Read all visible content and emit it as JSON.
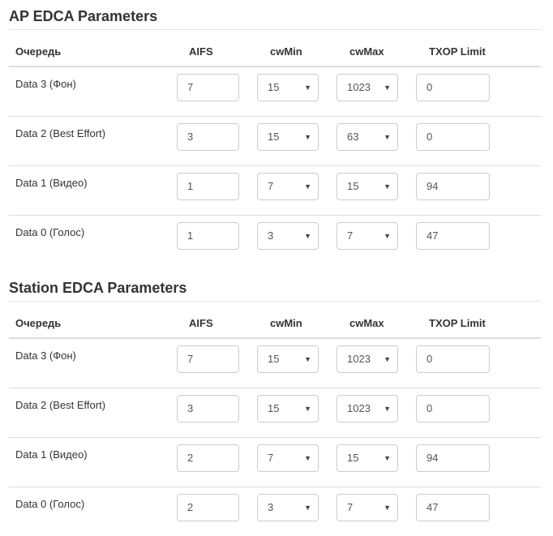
{
  "columns": {
    "queue": "Очередь",
    "aifs": "AIFS",
    "cwmin": "cwMin",
    "cwmax": "cwMax",
    "txop": "TXOP Limit"
  },
  "sections": [
    {
      "title": "AP EDCA Parameters",
      "rows": [
        {
          "label": "Data 3 (Фон)",
          "aifs": "7",
          "cwmin": "15",
          "cwmax": "1023",
          "txop": "0"
        },
        {
          "label": "Data 2 (Best Effort)",
          "aifs": "3",
          "cwmin": "15",
          "cwmax": "63",
          "txop": "0"
        },
        {
          "label": "Data 1 (Видео)",
          "aifs": "1",
          "cwmin": "7",
          "cwmax": "15",
          "txop": "94"
        },
        {
          "label": "Data 0 (Голос)",
          "aifs": "1",
          "cwmin": "3",
          "cwmax": "7",
          "txop": "47"
        }
      ]
    },
    {
      "title": "Station EDCA Parameters",
      "rows": [
        {
          "label": "Data 3 (Фон)",
          "aifs": "7",
          "cwmin": "15",
          "cwmax": "1023",
          "txop": "0"
        },
        {
          "label": "Data 2 (Best Effort)",
          "aifs": "3",
          "cwmin": "15",
          "cwmax": "1023",
          "txop": "0"
        },
        {
          "label": "Data 1 (Видео)",
          "aifs": "2",
          "cwmin": "7",
          "cwmax": "15",
          "txop": "94"
        },
        {
          "label": "Data 0 (Голос)",
          "aifs": "2",
          "cwmin": "3",
          "cwmax": "7",
          "txop": "47"
        }
      ]
    }
  ]
}
